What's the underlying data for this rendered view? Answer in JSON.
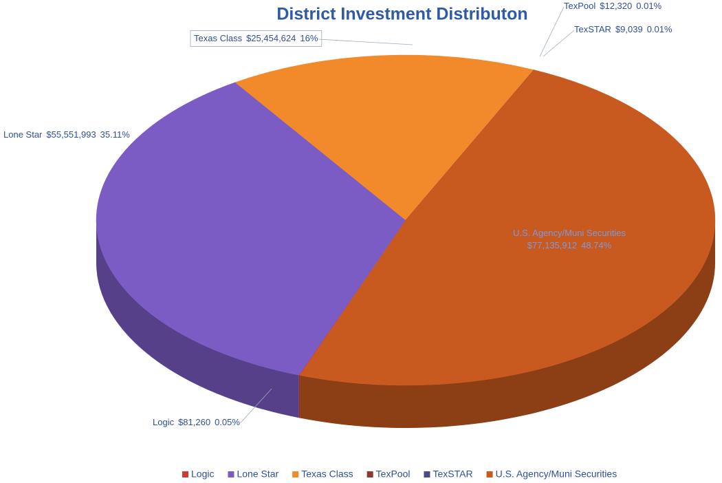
{
  "chart_data": {
    "type": "pie",
    "title": "District Investment Distributon",
    "categories": [
      "Logic",
      "Lone Star",
      "Texas Class",
      "TexPool",
      "TexSTAR",
      "U.S. Agency/Muni Securities"
    ],
    "values": [
      81260,
      55551993,
      25454624,
      12320,
      9039,
      77135912
    ],
    "value_labels": [
      "$81,260",
      "$55,551,993",
      "$25,454,624",
      "$12,320",
      "$9,039",
      "$77,135,912"
    ],
    "percents": [
      0.05,
      35.11,
      16,
      0.01,
      0.01,
      48.74
    ],
    "percent_labels": [
      "0.05%",
      "35.11%",
      "16%",
      "0.01%",
      "0.01%",
      "48.74%"
    ],
    "colors": [
      "#d23a35",
      "#7b5cc4",
      "#f28a2c",
      "#8b3a2e",
      "#4d4a8c",
      "#c95a1f"
    ],
    "legend": "bottom"
  }
}
